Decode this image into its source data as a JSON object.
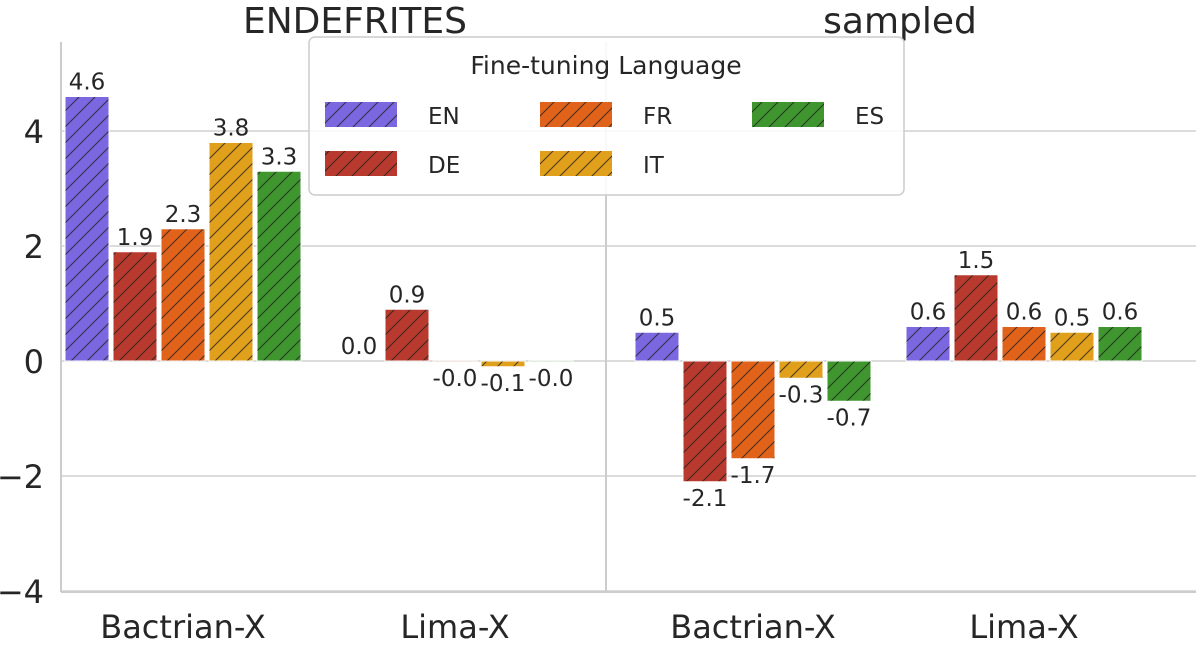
{
  "chart_data": {
    "type": "bar",
    "panels": [
      {
        "title": "ENDEFRITES",
        "categories": [
          "Bactrian-X",
          "Lima-X"
        ],
        "series": [
          {
            "name": "EN",
            "values": [
              4.6,
              0.0
            ],
            "labels": [
              "4.6",
              "0.0"
            ]
          },
          {
            "name": "DE",
            "values": [
              1.9,
              0.9
            ],
            "labels": [
              "1.9",
              "0.9"
            ]
          },
          {
            "name": "FR",
            "values": [
              2.3,
              -0.02
            ],
            "labels": [
              "2.3",
              "-0.0"
            ]
          },
          {
            "name": "IT",
            "values": [
              3.8,
              -0.1
            ],
            "labels": [
              "3.8",
              "-0.1"
            ]
          },
          {
            "name": "ES",
            "values": [
              3.3,
              -0.02
            ],
            "labels": [
              "3.3",
              "-0.0"
            ]
          }
        ]
      },
      {
        "title": "sampled",
        "categories": [
          "Bactrian-X",
          "Lima-X"
        ],
        "series": [
          {
            "name": "EN",
            "values": [
              0.5,
              0.6
            ],
            "labels": [
              "0.5",
              "0.6"
            ]
          },
          {
            "name": "DE",
            "values": [
              -2.1,
              1.5
            ],
            "labels": [
              "-2.1",
              "1.5"
            ]
          },
          {
            "name": "FR",
            "values": [
              -1.7,
              0.6
            ],
            "labels": [
              "-1.7",
              "0.6"
            ]
          },
          {
            "name": "IT",
            "values": [
              -0.3,
              0.5
            ],
            "labels": [
              "-0.3",
              "0.5"
            ]
          },
          {
            "name": "ES",
            "values": [
              -0.7,
              0.6
            ],
            "labels": [
              "-0.7",
              "0.6"
            ]
          }
        ]
      }
    ],
    "ylim": [
      -4,
      5.4
    ],
    "yticks": [
      -4,
      -2,
      0,
      2,
      4
    ],
    "ytick_labels": [
      "−4",
      "−2",
      "0",
      "2",
      "4"
    ],
    "legend": {
      "title": "Fine-tuning Language",
      "placement": "top-center",
      "entries": [
        "EN",
        "DE",
        "FR",
        "IT",
        "ES"
      ]
    },
    "colors": {
      "EN": "#7b68e0",
      "DE": "#b83a2e",
      "FR": "#e0621b",
      "IT": "#e0a01b",
      "ES": "#3f962f"
    },
    "hatch": "diagonal",
    "grid": true
  }
}
